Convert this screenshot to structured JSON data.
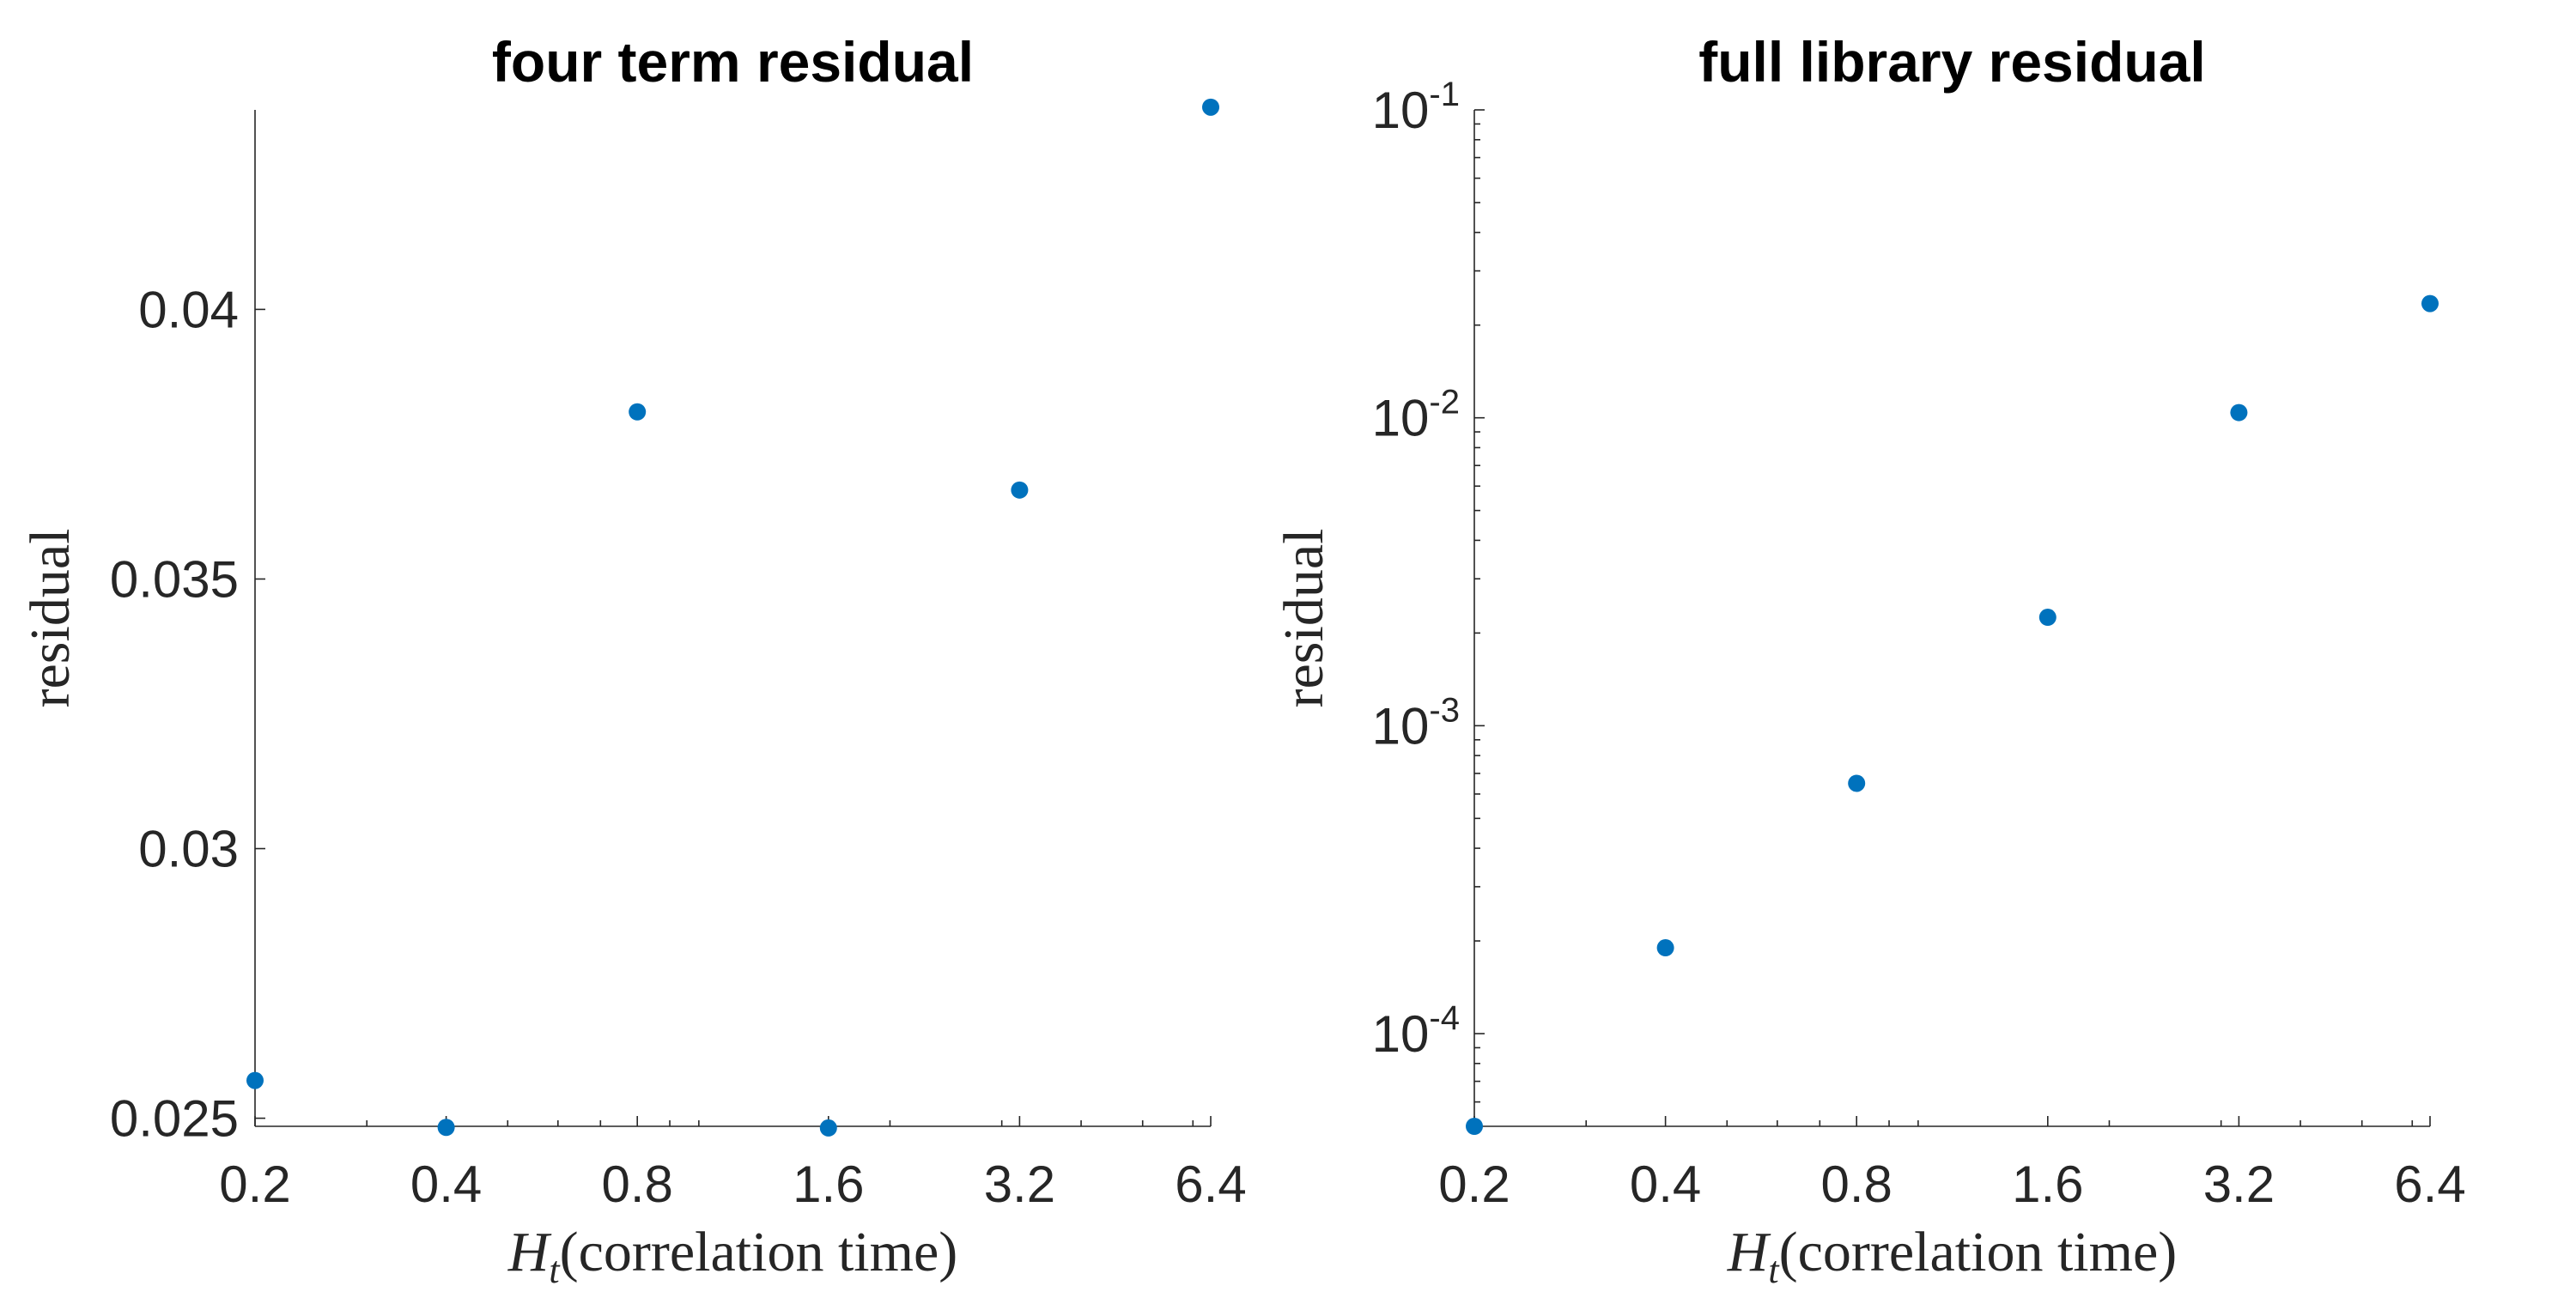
{
  "chart_data": [
    {
      "type": "scatter",
      "title": "four term residual",
      "xlabel_symbol": "H",
      "xlabel_subscript": "t",
      "xlabel_text": "(correlation time)",
      "ylabel": "residual",
      "x_scale": "log2",
      "y_scale": "linear",
      "xlim": [
        0.2,
        6.4
      ],
      "ylim": [
        0.02485,
        0.0437
      ],
      "x_ticks": [
        0.2,
        0.4,
        0.8,
        1.6,
        3.2,
        6.4
      ],
      "x_tick_labels": [
        "0.2",
        "0.4",
        "0.8",
        "1.6",
        "3.2",
        "6.4"
      ],
      "y_ticks": [
        0.025,
        0.03,
        0.035,
        0.04
      ],
      "y_tick_labels": [
        "0.025",
        "0.03",
        "0.035",
        "0.04"
      ],
      "series": [
        {
          "color": "#0072BD",
          "points": [
            {
              "x": 0.2,
              "y": 0.0257
            },
            {
              "x": 0.4,
              "y": 0.02483
            },
            {
              "x": 0.8,
              "y": 0.0381
            },
            {
              "x": 1.6,
              "y": 0.02482
            },
            {
              "x": 3.2,
              "y": 0.03665
            },
            {
              "x": 6.4,
              "y": 0.04375
            }
          ]
        }
      ],
      "grid": false
    },
    {
      "type": "scatter",
      "title": "full library residual",
      "xlabel_symbol": "H",
      "xlabel_subscript": "t",
      "xlabel_text": "(correlation time)",
      "ylabel": "residual",
      "x_scale": "log2",
      "y_scale": "log10",
      "xlim": [
        0.2,
        6.4
      ],
      "ylim": [
        5e-05,
        0.1
      ],
      "x_ticks": [
        0.2,
        0.4,
        0.8,
        1.6,
        3.2,
        6.4
      ],
      "x_tick_labels": [
        "0.2",
        "0.4",
        "0.8",
        "1.6",
        "3.2",
        "6.4"
      ],
      "y_ticks": [
        0.0001,
        0.001,
        0.01,
        0.1
      ],
      "y_tick_labels": [
        {
          "base": "10",
          "exp": "-4"
        },
        {
          "base": "10",
          "exp": "-3"
        },
        {
          "base": "10",
          "exp": "-2"
        },
        {
          "base": "10",
          "exp": "-1"
        }
      ],
      "series": [
        {
          "color": "#0072BD",
          "points": [
            {
              "x": 0.2,
              "y": 5e-05
            },
            {
              "x": 0.4,
              "y": 0.00019
            },
            {
              "x": 0.8,
              "y": 0.00065
            },
            {
              "x": 1.6,
              "y": 0.00225
            },
            {
              "x": 3.2,
              "y": 0.0104
            },
            {
              "x": 6.4,
              "y": 0.0235
            }
          ]
        }
      ],
      "grid": false
    }
  ]
}
